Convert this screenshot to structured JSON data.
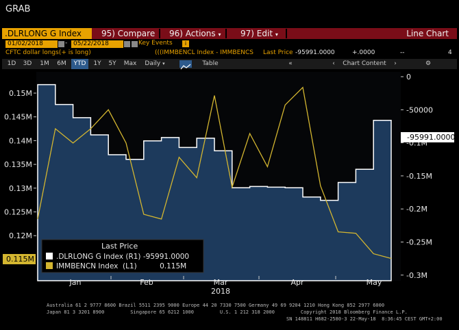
{
  "app_title": "GRAB",
  "command_bar": {
    "ticker": ".DLRLONG G Index",
    "compare_num": "95)",
    "compare_label": "Compare",
    "actions_num": "96)",
    "actions_label": "Actions",
    "edit_num": "97)",
    "edit_label": "Edit",
    "chart_type": "Line Chart"
  },
  "date_range": {
    "start": "01/02/2018",
    "separator": "-",
    "end": "05/22/2018",
    "key_events": "Key Events"
  },
  "info_line": {
    "series1_desc": "CFTC dollar longs(+ is long)",
    "series2_desc": "(((IMMBENCL Index - IMMBENCS",
    "last_price_label": "Last Price",
    "last_price_value": "-95991.0000",
    "change": "+.0000",
    "dash": "--",
    "count": "4"
  },
  "toolbar": {
    "periods": [
      "1D",
      "3D",
      "1M",
      "6M",
      "YTD",
      "1Y",
      "5Y",
      "Max"
    ],
    "selected_period": "YTD",
    "frequency": "Daily",
    "table_label": "Table",
    "chart_content_label": "Chart Content"
  },
  "colors": {
    "command_bar": "#7a0d18",
    "ticker_bg": "#e8a200",
    "area_series": "#ffffff",
    "area_fill": "#1d3a5c",
    "line_series": "#d4b630"
  },
  "chart_data": {
    "type": "line",
    "x_tick_labels": [
      "Jan",
      "Feb",
      "Mar",
      "Apr",
      "May"
    ],
    "x_year_label": "2018",
    "left_axis": {
      "ticks": [
        "0.15M",
        "0.145M",
        "0.14M",
        "0.135M",
        "0.13M",
        "0.125M",
        "0.12M"
      ],
      "ylim": [
        0.113,
        0.154
      ],
      "unit": "M"
    },
    "right_axis": {
      "ticks": [
        "0",
        "-50000",
        "-0.1M",
        "-0.15M",
        "-0.2M",
        "-0.25M",
        "-0.3M"
      ],
      "ylim": [
        -0.3,
        0.0
      ],
      "unit": "M"
    },
    "left_last_value_tag": "0.115M",
    "right_last_value_tag": "-95991.0000",
    "series": [
      {
        "name": ".DLRLONG G Index",
        "axis": "right",
        "style": "step-area",
        "x_weeks": [
          0,
          1,
          2,
          3,
          4,
          5,
          6,
          7,
          8,
          9,
          10,
          11,
          12,
          13,
          14,
          15,
          16,
          17,
          18,
          19,
          20
        ],
        "values_M": [
          -0.012,
          -0.042,
          -0.062,
          -0.088,
          -0.118,
          -0.125,
          -0.097,
          -0.092,
          -0.107,
          -0.093,
          -0.112,
          -0.168,
          -0.166,
          -0.167,
          -0.168,
          -0.182,
          -0.187,
          -0.16,
          -0.14,
          -0.066,
          -0.096
        ]
      },
      {
        "name": "IMMBENCN Index",
        "axis": "left",
        "style": "line",
        "x_weeks": [
          0,
          1,
          2,
          3,
          4,
          5,
          6,
          7,
          8,
          9,
          10,
          11,
          12,
          13,
          14,
          15,
          16,
          17,
          18,
          19,
          20
        ],
        "values_M": [
          0.1235,
          0.1425,
          0.1395,
          0.1425,
          0.1465,
          0.1395,
          0.1245,
          0.1235,
          0.1365,
          0.1322,
          0.1495,
          0.1302,
          0.1415,
          0.1345,
          0.1475,
          0.1512,
          0.1305,
          0.1208,
          0.1205,
          0.1162,
          0.1152
        ]
      }
    ]
  },
  "legend": {
    "title": "Last Price",
    "items": [
      {
        "label": ".DLRLONG G Index  (R1) -95991.0000"
      },
      {
        "label": "IMMBENCN Index  (L1)          0.115M"
      }
    ]
  },
  "footer": {
    "line1": "Australia 61 2 9777 8600 Brazil 5511 2395 9000 Europe 44 20 7330 7500 Germany 49 69 9204 1210 Hong Kong 852 2977 6000",
    "line2": "Japan 81 3 3201 8900         Singapore 65 6212 1000         U.S. 1 212 318 2000         Copyright 2018 Bloomberg Finance L.P.",
    "line3": "SN 148811 H682-2580-3 22-May-18  8:36:45 CEST GMT+2:00"
  }
}
